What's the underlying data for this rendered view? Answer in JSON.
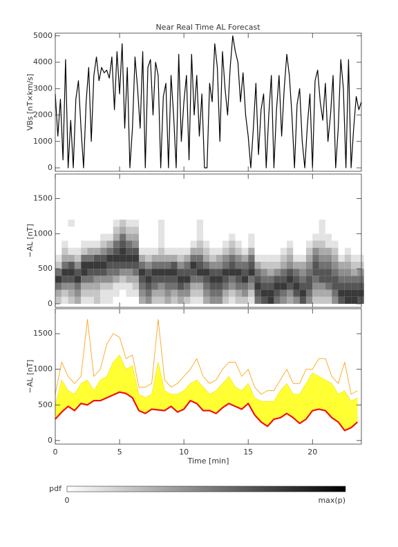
{
  "chart_data": [
    {
      "type": "line",
      "title": "Near Real Time AL Forecast",
      "ylabel": "VBs [nT×km/s]",
      "color": "#000000",
      "xlim": [
        0,
        23.8
      ],
      "ylim": [
        -130,
        5100
      ],
      "yticks": [
        0,
        1000,
        2000,
        3000,
        4000,
        5000
      ],
      "x": [
        0,
        0.2,
        0.4,
        0.6,
        0.8,
        1,
        1.2,
        1.4,
        1.6,
        1.8,
        2,
        2.2,
        2.4,
        2.6,
        2.8,
        3,
        3.2,
        3.4,
        3.6,
        3.8,
        4,
        4.2,
        4.4,
        4.6,
        4.8,
        5,
        5.2,
        5.4,
        5.6,
        5.8,
        6,
        6.2,
        6.4,
        6.6,
        6.8,
        7,
        7.2,
        7.4,
        7.6,
        7.8,
        8,
        8.2,
        8.4,
        8.6,
        8.8,
        9,
        9.2,
        9.4,
        9.6,
        9.8,
        10,
        10.2,
        10.4,
        10.6,
        10.8,
        11,
        11.2,
        11.4,
        11.6,
        11.8,
        12,
        12.2,
        12.4,
        12.6,
        12.8,
        13,
        13.2,
        13.4,
        13.6,
        13.8,
        14,
        14.2,
        14.4,
        14.6,
        14.8,
        15,
        15.2,
        15.4,
        15.6,
        15.8,
        16,
        16.2,
        16.4,
        16.6,
        16.8,
        17,
        17.2,
        17.4,
        17.6,
        17.8,
        18,
        18.2,
        18.4,
        18.6,
        18.8,
        19,
        19.2,
        19.4,
        19.6,
        19.8,
        20,
        20.2,
        20.4,
        20.6,
        20.8,
        21,
        21.2,
        21.4,
        21.6,
        21.8,
        22,
        22.2,
        22.4,
        22.6,
        22.8,
        23,
        23.2,
        23.4,
        23.6,
        23.8
      ],
      "values": [
        2800,
        1200,
        2600,
        300,
        4100,
        0,
        1800,
        0,
        2600,
        3300,
        1500,
        0,
        2500,
        3800,
        1000,
        3500,
        4200,
        3300,
        3800,
        3600,
        3700,
        3400,
        4200,
        2200,
        4400,
        2800,
        4700,
        1500,
        3800,
        0,
        1500,
        4200,
        3000,
        1500,
        4400,
        0,
        3800,
        4100,
        2000,
        4000,
        3500,
        0,
        2700,
        3200,
        0,
        3500,
        2000,
        0,
        4300,
        1000,
        2500,
        3500,
        300,
        4300,
        2000,
        3500,
        1200,
        2800,
        0,
        0,
        3200,
        2500,
        4700,
        3800,
        1000,
        4400,
        3000,
        2000,
        3800,
        5000,
        4400,
        4000,
        2500,
        3600,
        2000,
        1200,
        0,
        1500,
        3200,
        500,
        2200,
        2800,
        0,
        2000,
        3500,
        0,
        2200,
        3500,
        1200,
        3000,
        4300,
        3500,
        2000,
        0,
        2400,
        3000,
        1000,
        0,
        1600,
        2800,
        0,
        3300,
        3700,
        2500,
        1800,
        3200,
        1000,
        2000,
        3500,
        0,
        1500,
        4100,
        3000,
        0,
        4100,
        0,
        1500,
        2700,
        2200,
        2500
      ]
    },
    {
      "type": "heatmap",
      "ylabel": "−AL [nT]",
      "xlim": [
        0,
        23.8
      ],
      "ylim": [
        -50,
        1850
      ],
      "yticks": [
        0,
        500,
        1000,
        1500
      ],
      "x": [
        0,
        0.5,
        1,
        1.5,
        2,
        2.5,
        3,
        3.5,
        4,
        4.5,
        5,
        5.5,
        6,
        6.5,
        7,
        7.5,
        8,
        8.5,
        9,
        9.5,
        10,
        10.5,
        11,
        11.5,
        12,
        12.5,
        13,
        13.5,
        14,
        14.5,
        15,
        15.5,
        16,
        16.5,
        17,
        17.5,
        18,
        18.5,
        19,
        19.5,
        20,
        20.5,
        21,
        21.5,
        22,
        22.5,
        23,
        23.5
      ],
      "y_bins": [
        0,
        100,
        200,
        300,
        400,
        500,
        600,
        700,
        800,
        900,
        1000,
        1100,
        1200
      ],
      "z": [
        [
          2,
          3,
          5,
          7,
          5,
          2,
          1,
          0,
          0,
          0,
          0,
          0
        ],
        [
          1,
          2,
          4,
          6,
          7,
          5,
          3,
          2,
          1,
          0,
          0,
          0
        ],
        [
          2,
          3,
          4,
          6,
          7,
          6,
          3,
          1,
          0,
          0,
          0,
          1
        ],
        [
          3,
          4,
          5,
          7,
          6,
          4,
          2,
          1,
          0,
          0,
          0,
          0
        ],
        [
          1,
          2,
          3,
          5,
          7,
          7,
          5,
          2,
          1,
          0,
          0,
          0
        ],
        [
          1,
          2,
          3,
          5,
          6,
          7,
          5,
          3,
          1,
          0,
          0,
          0
        ],
        [
          2,
          2,
          3,
          4,
          6,
          7,
          6,
          3,
          1,
          0,
          0,
          0
        ],
        [
          1,
          1,
          2,
          4,
          6,
          7,
          6,
          4,
          2,
          1,
          0,
          0
        ],
        [
          1,
          1,
          2,
          4,
          5,
          6,
          7,
          5,
          3,
          1,
          0,
          0
        ],
        [
          0,
          1,
          1,
          3,
          5,
          6,
          7,
          6,
          5,
          3,
          2,
          1
        ],
        [
          0,
          0,
          1,
          2,
          4,
          6,
          7,
          7,
          6,
          5,
          3,
          2
        ],
        [
          0,
          1,
          1,
          3,
          4,
          6,
          7,
          6,
          5,
          3,
          2,
          1
        ],
        [
          0,
          1,
          2,
          3,
          5,
          6,
          7,
          6,
          4,
          3,
          2,
          1
        ],
        [
          3,
          4,
          5,
          6,
          7,
          5,
          3,
          1,
          0,
          0,
          0,
          0
        ],
        [
          4,
          5,
          6,
          7,
          6,
          4,
          2,
          1,
          0,
          0,
          0,
          0
        ],
        [
          2,
          3,
          5,
          6,
          7,
          5,
          3,
          1,
          0,
          0,
          0,
          0
        ],
        [
          2,
          3,
          4,
          6,
          7,
          5,
          3,
          2,
          1,
          1,
          1,
          1
        ],
        [
          3,
          4,
          5,
          6,
          7,
          5,
          3,
          1,
          0,
          0,
          0,
          0
        ],
        [
          2,
          3,
          5,
          6,
          7,
          6,
          3,
          1,
          0,
          0,
          0,
          0
        ],
        [
          3,
          4,
          6,
          7,
          6,
          4,
          2,
          1,
          0,
          0,
          0,
          0
        ],
        [
          2,
          4,
          5,
          7,
          6,
          5,
          3,
          1,
          0,
          0,
          0,
          0
        ],
        [
          1,
          2,
          3,
          5,
          6,
          7,
          5,
          3,
          1,
          0,
          0,
          0
        ],
        [
          1,
          2,
          3,
          5,
          7,
          6,
          5,
          3,
          2,
          1,
          1,
          1
        ],
        [
          3,
          4,
          5,
          6,
          7,
          5,
          3,
          2,
          1,
          0,
          0,
          0
        ],
        [
          4,
          5,
          6,
          7,
          6,
          4,
          2,
          1,
          0,
          0,
          0,
          0
        ],
        [
          4,
          5,
          6,
          7,
          6,
          4,
          3,
          1,
          0,
          0,
          0,
          0
        ],
        [
          2,
          3,
          5,
          6,
          7,
          5,
          4,
          2,
          1,
          0,
          0,
          0
        ],
        [
          1,
          2,
          4,
          5,
          7,
          6,
          5,
          3,
          2,
          1,
          0,
          0
        ],
        [
          2,
          3,
          5,
          6,
          7,
          5,
          4,
          2,
          1,
          0,
          0,
          0
        ],
        [
          2,
          4,
          5,
          7,
          6,
          5,
          3,
          1,
          0,
          0,
          0,
          0
        ],
        [
          1,
          2,
          4,
          5,
          7,
          6,
          5,
          3,
          1,
          1,
          0,
          0
        ],
        [
          5,
          6,
          7,
          6,
          5,
          3,
          1,
          0,
          0,
          0,
          0,
          0
        ],
        [
          6,
          7,
          6,
          5,
          4,
          2,
          1,
          0,
          0,
          0,
          0,
          0
        ],
        [
          7,
          7,
          6,
          5,
          3,
          2,
          1,
          0,
          0,
          0,
          0,
          0
        ],
        [
          5,
          6,
          7,
          6,
          4,
          2,
          1,
          0,
          0,
          0,
          0,
          0
        ],
        [
          4,
          5,
          7,
          6,
          5,
          3,
          2,
          1,
          0,
          0,
          0,
          0
        ],
        [
          3,
          4,
          6,
          7,
          6,
          4,
          3,
          2,
          1,
          0,
          0,
          0
        ],
        [
          4,
          6,
          7,
          6,
          5,
          3,
          1,
          0,
          0,
          0,
          0,
          0
        ],
        [
          6,
          7,
          6,
          5,
          4,
          3,
          1,
          0,
          0,
          0,
          0,
          0
        ],
        [
          4,
          5,
          6,
          6,
          5,
          4,
          3,
          2,
          1,
          0,
          0,
          0
        ],
        [
          2,
          3,
          4,
          5,
          6,
          6,
          5,
          4,
          2,
          1,
          0,
          0
        ],
        [
          2,
          3,
          4,
          6,
          6,
          5,
          4,
          3,
          2,
          1,
          1,
          1
        ],
        [
          2,
          3,
          5,
          6,
          6,
          5,
          4,
          3,
          1,
          1,
          0,
          0
        ],
        [
          4,
          5,
          6,
          6,
          5,
          4,
          3,
          2,
          1,
          0,
          0,
          0
        ],
        [
          6,
          7,
          6,
          5,
          4,
          3,
          1,
          0,
          0,
          0,
          0,
          0
        ],
        [
          7,
          7,
          6,
          5,
          4,
          3,
          2,
          1,
          0,
          0,
          0,
          0
        ],
        [
          7,
          7,
          6,
          5,
          3,
          2,
          1,
          0,
          0,
          0,
          0,
          0
        ],
        [
          6,
          7,
          6,
          5,
          4,
          2,
          1,
          0,
          0,
          0,
          0,
          0
        ]
      ],
      "colorbar": {
        "label": "pdf",
        "ticks": [
          0,
          {
            "value": 9,
            "label": "max(p)"
          }
        ]
      }
    },
    {
      "type": "line",
      "ylabel": "−AL [nT]",
      "xlabel": "Time [min]",
      "xlim": [
        0,
        23.8
      ],
      "ylim": [
        -50,
        1850
      ],
      "yticks": [
        0,
        500,
        1000,
        1500
      ],
      "xticks": [
        0,
        5,
        10,
        15,
        20
      ],
      "x": [
        0,
        0.5,
        1,
        1.5,
        2,
        2.5,
        3,
        3.5,
        4,
        4.5,
        5,
        5.5,
        6,
        6.5,
        7,
        7.5,
        8,
        8.5,
        9,
        9.5,
        10,
        10.5,
        11,
        11.5,
        12,
        12.5,
        13,
        13.5,
        14,
        14.5,
        15,
        15.5,
        16,
        16.5,
        17,
        17.5,
        18,
        18.5,
        19,
        19.5,
        20,
        20.5,
        21,
        21.5,
        22,
        22.5,
        23,
        23.5
      ],
      "series": [
        {
          "color": "#ee1111",
          "values": [
            300,
            400,
            480,
            420,
            520,
            500,
            560,
            560,
            600,
            640,
            680,
            660,
            600,
            420,
            380,
            440,
            430,
            420,
            480,
            400,
            440,
            560,
            520,
            420,
            420,
            380,
            460,
            520,
            480,
            440,
            520,
            360,
            260,
            200,
            300,
            320,
            380,
            320,
            240,
            300,
            420,
            440,
            420,
            320,
            260,
            140,
            180,
            260
          ]
        },
        {
          "color": "#f5e93a",
          "fill": "#ffff33",
          "values": [
            500,
            850,
            700,
            650,
            800,
            850,
            700,
            850,
            900,
            1100,
            1200,
            1000,
            1050,
            650,
            600,
            650,
            1100,
            700,
            650,
            650,
            700,
            800,
            850,
            750,
            650,
            700,
            800,
            900,
            750,
            700,
            800,
            600,
            550,
            550,
            550,
            700,
            800,
            650,
            650,
            800,
            950,
            900,
            850,
            800,
            650,
            700,
            550,
            600
          ]
        },
        {
          "color": "#ffa31a",
          "values": [
            650,
            1100,
            900,
            800,
            900,
            1700,
            900,
            1000,
            1350,
            1500,
            1450,
            1150,
            1200,
            750,
            750,
            800,
            1700,
            850,
            750,
            800,
            900,
            1000,
            1150,
            900,
            800,
            850,
            1000,
            1100,
            1100,
            900,
            1000,
            750,
            650,
            700,
            700,
            850,
            1000,
            800,
            800,
            1000,
            1000,
            1150,
            1150,
            900,
            800,
            1100,
            650,
            700
          ]
        }
      ]
    }
  ]
}
